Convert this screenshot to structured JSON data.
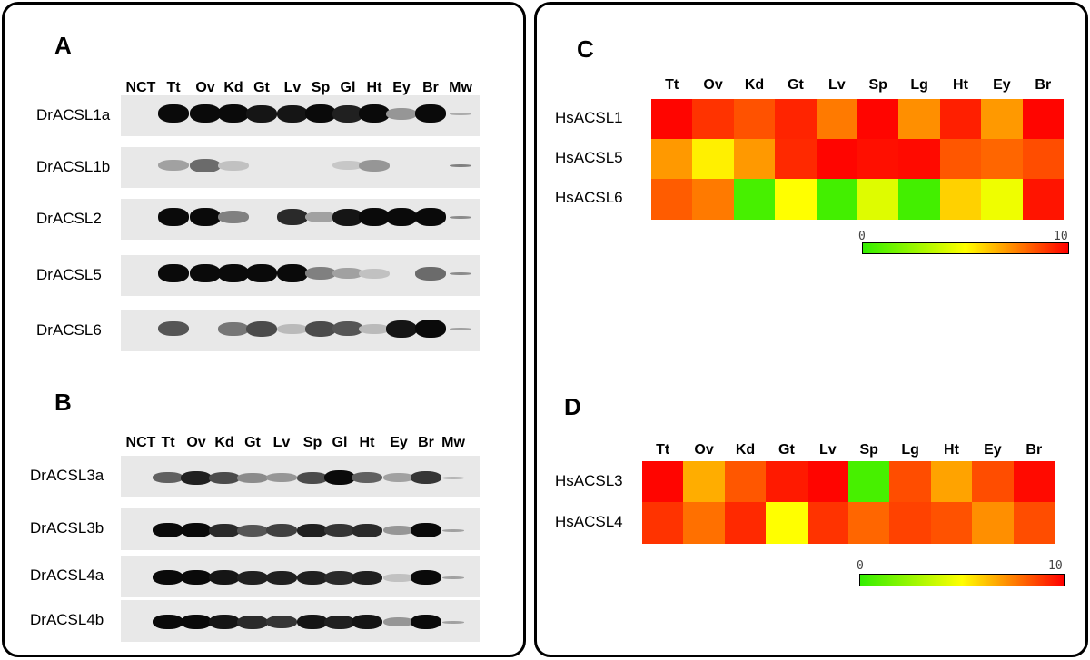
{
  "panelA": {
    "label": "A",
    "lanes": [
      "NCT",
      "Tt",
      "Ov",
      "Kd",
      "Gt",
      "Lv",
      "Sp",
      "Gl",
      "Ht",
      "Ey",
      "Br",
      "Mw"
    ],
    "genes": [
      {
        "name": "DrACSL1a",
        "intensity": [
          0,
          1,
          1,
          1,
          0.95,
          0.95,
          1,
          0.9,
          1,
          0.35,
          1,
          0.25
        ]
      },
      {
        "name": "DrACSL1b",
        "intensity": [
          0,
          0.3,
          0.55,
          0.15,
          0,
          0,
          0,
          0.12,
          0.35,
          0,
          0,
          0.45
        ]
      },
      {
        "name": "DrACSL2",
        "intensity": [
          0,
          1,
          1,
          0.45,
          0,
          0.85,
          0.3,
          0.95,
          1,
          1,
          1,
          0.4
        ]
      },
      {
        "name": "DrACSL5",
        "intensity": [
          0,
          1,
          1,
          1,
          1,
          1,
          0.45,
          0.3,
          0.15,
          0,
          0.55,
          0.4
        ]
      },
      {
        "name": "DrACSL6",
        "intensity": [
          0,
          0.65,
          0,
          0.5,
          0.7,
          0.18,
          0.7,
          0.65,
          0.18,
          0.95,
          1,
          0.3
        ]
      }
    ]
  },
  "panelB": {
    "label": "B",
    "lanes": [
      "NCT",
      "Tt",
      "Ov",
      "Kd",
      "Gt",
      "Lv",
      "Sp",
      "Gl",
      "Ht",
      "Ey",
      "Br",
      "Mw"
    ],
    "genes": [
      {
        "name": "DrACSL3a",
        "intensity": [
          0,
          0.6,
          0.9,
          0.7,
          0.4,
          0.35,
          0.7,
          1,
          0.6,
          0.3,
          0.8,
          0.2
        ]
      },
      {
        "name": "DrACSL3b",
        "intensity": [
          0,
          1,
          1,
          0.85,
          0.65,
          0.75,
          0.9,
          0.8,
          0.85,
          0.35,
          1,
          0.3
        ]
      },
      {
        "name": "DrACSL4a",
        "intensity": [
          0,
          1,
          1,
          0.95,
          0.9,
          0.9,
          0.9,
          0.85,
          0.9,
          0.15,
          1,
          0.3
        ]
      },
      {
        "name": "DrACSL4b",
        "intensity": [
          0,
          1,
          1,
          0.95,
          0.85,
          0.8,
          0.95,
          0.9,
          0.95,
          0.35,
          1,
          0.3
        ]
      }
    ]
  },
  "panelC": {
    "label": "C",
    "tissues": [
      "Tt",
      "Ov",
      "Kd",
      "Gt",
      "Lv",
      "Sp",
      "Lg",
      "Ht",
      "Ey",
      "Br"
    ],
    "rows": [
      {
        "name": "HsACSL1",
        "values": [
          9.9,
          9.0,
          8.4,
          9.3,
          7.6,
          9.9,
          7.2,
          9.4,
          7.0,
          9.9
        ]
      },
      {
        "name": "HsACSL5",
        "values": [
          7.0,
          5.3,
          7.0,
          9.2,
          9.9,
          9.7,
          9.8,
          8.3,
          8.0,
          8.5
        ]
      },
      {
        "name": "HsACSL6",
        "values": [
          8.2,
          7.6,
          0.5,
          5.0,
          0.4,
          4.2,
          0.4,
          5.9,
          4.6,
          9.6
        ]
      }
    ],
    "scale": {
      "min": "0",
      "max": "10",
      "colors": [
        "#33ee00",
        "#ffff00",
        "#ff0000"
      ]
    }
  },
  "panelD": {
    "label": "D",
    "tissues": [
      "Tt",
      "Ov",
      "Kd",
      "Gt",
      "Lv",
      "Sp",
      "Lg",
      "Ht",
      "Ey",
      "Br"
    ],
    "rows": [
      {
        "name": "HsACSL3",
        "values": [
          9.9,
          6.6,
          8.3,
          9.5,
          9.9,
          0.5,
          8.5,
          6.8,
          8.5,
          9.8
        ]
      },
      {
        "name": "HsACSL4",
        "values": [
          9.0,
          7.8,
          9.2,
          5.0,
          9.0,
          8.0,
          8.7,
          8.4,
          7.2,
          8.5
        ]
      }
    ],
    "scale": {
      "min": "0",
      "max": "10",
      "colors": [
        "#33ee00",
        "#ffff00",
        "#ff0000"
      ]
    }
  }
}
